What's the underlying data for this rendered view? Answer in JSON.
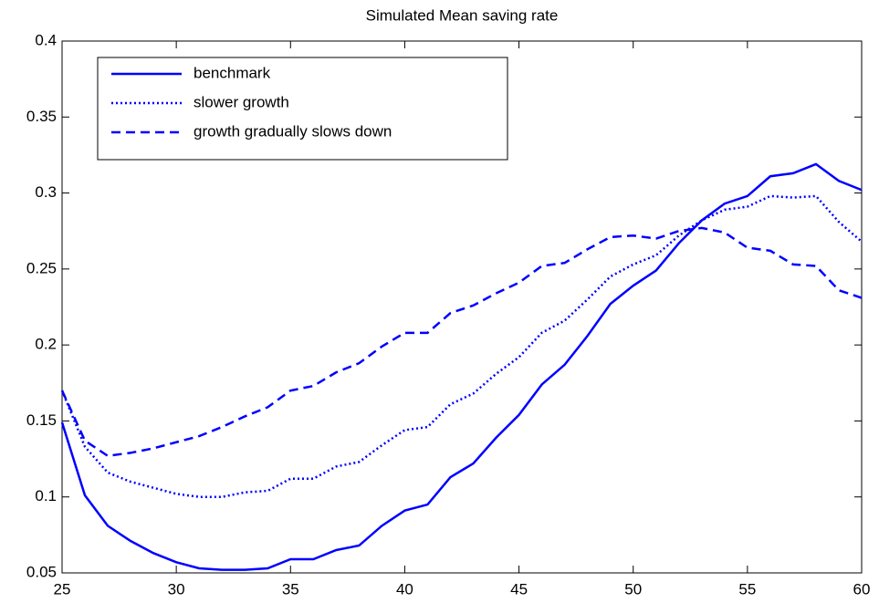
{
  "chart_data": {
    "type": "line",
    "title": "Simulated Mean saving rate",
    "x": [
      25,
      26,
      27,
      28,
      29,
      30,
      31,
      32,
      33,
      34,
      35,
      36,
      37,
      38,
      39,
      40,
      41,
      42,
      43,
      44,
      45,
      46,
      47,
      48,
      49,
      50,
      51,
      52,
      53,
      54,
      55,
      56,
      57,
      58,
      59,
      60
    ],
    "series": [
      {
        "name": "benchmark",
        "color": "#0000ff",
        "style": "solid",
        "values": [
          0.149,
          0.101,
          0.081,
          0.071,
          0.063,
          0.057,
          0.053,
          0.052,
          0.052,
          0.053,
          0.059,
          0.059,
          0.065,
          0.068,
          0.081,
          0.091,
          0.095,
          0.113,
          0.122,
          0.139,
          0.154,
          0.174,
          0.187,
          0.206,
          0.227,
          0.239,
          0.249,
          0.267,
          0.282,
          0.293,
          0.298,
          0.311,
          0.313,
          0.319,
          0.308,
          0.302
        ]
      },
      {
        "name": "slower growth",
        "color": "#0000ff",
        "style": "dotted",
        "values": [
          0.17,
          0.133,
          0.116,
          0.11,
          0.106,
          0.102,
          0.1,
          0.1,
          0.103,
          0.104,
          0.112,
          0.112,
          0.12,
          0.123,
          0.134,
          0.144,
          0.146,
          0.161,
          0.168,
          0.181,
          0.192,
          0.208,
          0.216,
          0.23,
          0.245,
          0.253,
          0.259,
          0.272,
          0.282,
          0.289,
          0.291,
          0.298,
          0.297,
          0.298,
          0.281,
          0.268
        ]
      },
      {
        "name": "growth gradually slows down",
        "color": "#0000ff",
        "style": "dashed",
        "values": [
          0.17,
          0.137,
          0.127,
          0.129,
          0.132,
          0.136,
          0.14,
          0.146,
          0.153,
          0.159,
          0.17,
          0.173,
          0.182,
          0.188,
          0.199,
          0.208,
          0.208,
          0.221,
          0.226,
          0.234,
          0.241,
          0.252,
          0.254,
          0.263,
          0.271,
          0.272,
          0.27,
          0.275,
          0.277,
          0.274,
          0.264,
          0.262,
          0.253,
          0.252,
          0.236,
          0.231
        ]
      }
    ],
    "xlim": [
      25,
      60
    ],
    "xticks": [
      25,
      30,
      35,
      40,
      45,
      50,
      55,
      60
    ],
    "ylim": [
      0.05,
      0.4
    ],
    "yticks": [
      0.05,
      0.1,
      0.15,
      0.2,
      0.25,
      0.3,
      0.35,
      0.4
    ],
    "grid": false,
    "legend": "upper left"
  }
}
